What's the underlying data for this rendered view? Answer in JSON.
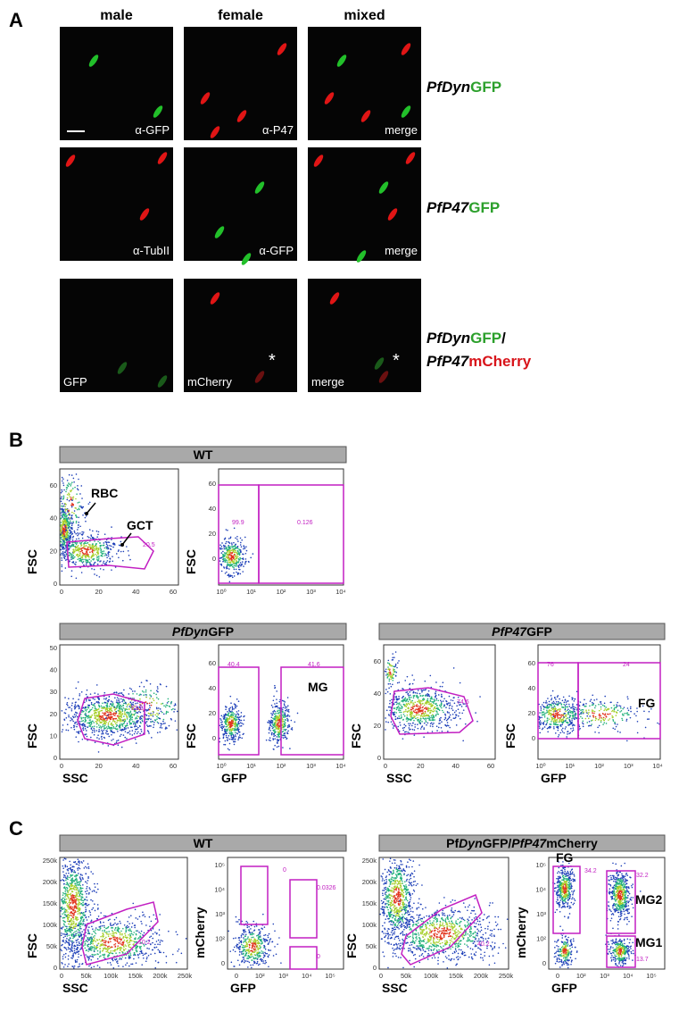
{
  "panel_a": {
    "label": "A",
    "columns": [
      "male",
      "female",
      "mixed"
    ],
    "rows": [
      {
        "name": [
          "PfDyn",
          "GFP"
        ],
        "tiles": [
          {
            "caption": "α-GFP"
          },
          {
            "caption": "α-P47"
          },
          {
            "caption": "merge"
          }
        ]
      },
      {
        "name": [
          "PfP47",
          "GFP"
        ],
        "tiles": [
          {
            "caption": "α-TubII"
          },
          {
            "caption": "α-GFP"
          },
          {
            "caption": "merge"
          }
        ]
      },
      {
        "name": [
          "PfDyn",
          "GFP",
          "/",
          "PfP47",
          "mCherry"
        ],
        "tiles": [
          {
            "caption": "GFP"
          },
          {
            "caption": "mCherry",
            "mark": "*"
          },
          {
            "caption": "merge",
            "mark": "*"
          }
        ]
      }
    ]
  },
  "panel_b": {
    "label": "B",
    "groups": [
      {
        "title": [
          "WT"
        ],
        "plots": [
          {
            "y_label": "FSC",
            "xticks": [
              0,
              20,
              40,
              60
            ],
            "yticks": [
              0,
              20,
              40,
              60
            ],
            "annotations": [
              "RBC",
              "GCT",
              "20.5"
            ]
          },
          {
            "y_label": "FSC",
            "xticks": [
              "10⁰",
              "10¹",
              "10²",
              "10³",
              "10⁴"
            ],
            "yticks": [
              0,
              20,
              40,
              60
            ],
            "annotations": [
              "99.9",
              "0.126"
            ]
          }
        ]
      },
      {
        "title": [
          "PfDyn",
          "GFP"
        ],
        "plots": [
          {
            "y_label": "FSC",
            "x_label": "SSC",
            "xticks": [
              0,
              20,
              40,
              60
            ],
            "yticks": [
              0,
              10,
              20,
              30,
              40,
              50
            ],
            "annotations": [
              "62.6"
            ]
          },
          {
            "y_label": "FSC",
            "x_label": "GFP",
            "xticks": [
              "10⁰",
              "10¹",
              "10²",
              "10³",
              "10⁴"
            ],
            "yticks": [
              0,
              20,
              40,
              60
            ],
            "annotations": [
              "40.4",
              "41.6",
              "MG"
            ]
          }
        ]
      },
      {
        "title": [
          "PfP47",
          "GFP"
        ],
        "plots": [
          {
            "y_label": "FSC",
            "x_label": "SSC",
            "xticks": [
              0,
              20,
              40,
              60
            ],
            "yticks": [
              0,
              20,
              40,
              60
            ],
            "annotations": [
              "74.6"
            ]
          },
          {
            "y_label": "FSC",
            "x_label": "GFP",
            "xticks": [
              "10⁰",
              "10¹",
              "10²",
              "10³",
              "10⁴"
            ],
            "yticks": [
              0,
              20,
              40,
              60
            ],
            "annotations": [
              "76",
              "24",
              "FG"
            ]
          }
        ]
      }
    ]
  },
  "panel_c": {
    "label": "C",
    "groups": [
      {
        "title": [
          "WT"
        ],
        "plots": [
          {
            "y_label": "FSC",
            "x_label": "SSC",
            "xticks": [
              0,
              "50k",
              "100k",
              "150k",
              "200k",
              "250k"
            ],
            "yticks": [
              0,
              "50k",
              "100k",
              "150k",
              "200k",
              "250k"
            ],
            "annotations": [
              "10.2"
            ]
          },
          {
            "y_label": "mCherry",
            "x_label": "GFP",
            "xticks": [
              0,
              "10²",
              "10³",
              "10⁴",
              "10⁵"
            ],
            "yticks": [
              0,
              "10²",
              "10³",
              "10⁴",
              "10⁵"
            ],
            "annotations": [
              "0",
              "0.0326",
              "0"
            ]
          }
        ]
      },
      {
        "title": [
          "Pf",
          "Dyn",
          "GFP/",
          "PfP47",
          "mCherry"
        ],
        "plots": [
          {
            "y_label": "FSC",
            "x_label": "SSC",
            "xticks": [
              0,
              "50k",
              "100k",
              "150k",
              "200k",
              "250k"
            ],
            "yticks": [
              0,
              "50k",
              "100k",
              "150k",
              "200k",
              "250k"
            ],
            "annotations": [
              "40.2"
            ]
          },
          {
            "y_label": "mCherry",
            "x_label": "GFP",
            "xticks": [
              0,
              "10²",
              "10³",
              "10⁴",
              "10⁵"
            ],
            "yticks": [
              0,
              "10²",
              "10³",
              "10⁴",
              "10⁵"
            ],
            "annotations": [
              "FG",
              "34.2",
              "32.2",
              "MG2",
              "MG1",
              "13.7"
            ]
          }
        ]
      }
    ]
  }
}
